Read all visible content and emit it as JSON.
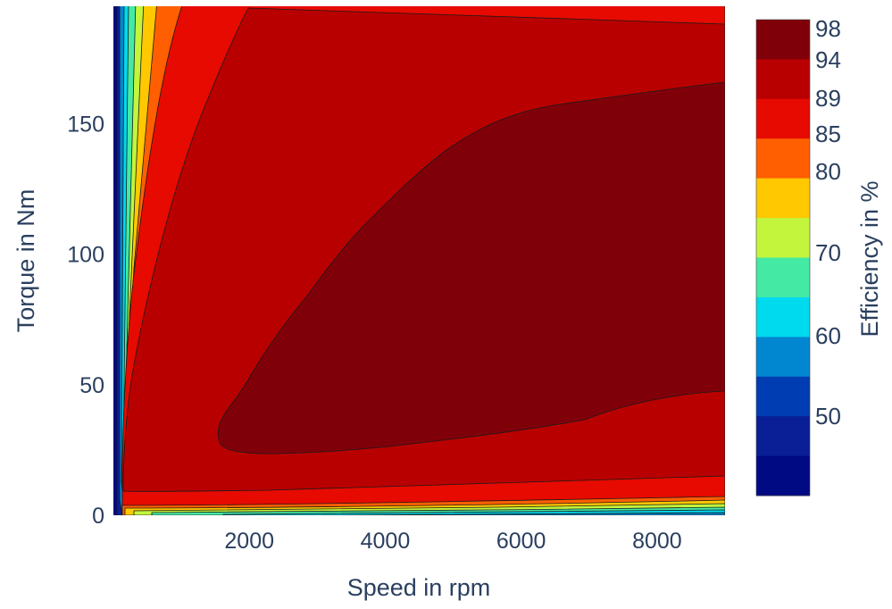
{
  "chart_data": {
    "type": "contour",
    "title": "",
    "xlabel": "Speed in rpm",
    "ylabel": "Torque in Nm",
    "xlim": [
      0,
      9000
    ],
    "ylim": [
      0,
      195
    ],
    "x_ticks": [
      2000,
      4000,
      6000,
      8000
    ],
    "y_ticks": [
      0,
      50,
      100,
      150
    ],
    "grid": true,
    "colorbar": {
      "title": "Efficiency in %",
      "tick_labels": [
        98,
        94,
        89,
        85,
        80,
        70,
        60,
        50
      ],
      "levels": [
        {
          "color": "#80000a"
        },
        {
          "color": "#b90000"
        },
        {
          "color": "#e60a00"
        },
        {
          "color": "#ff5f00"
        },
        {
          "color": "#ffc800"
        },
        {
          "color": "#c2f53c"
        },
        {
          "color": "#44eaa4"
        },
        {
          "color": "#00daee"
        },
        {
          "color": "#0087cf"
        },
        {
          "color": "#003cb2"
        },
        {
          "color": "#0a1e96"
        },
        {
          "color": "#000a82"
        }
      ]
    },
    "regions": [
      {
        "level": "> 94",
        "color": "#80000a",
        "outline_torque": [
          [
            1500,
            22
          ],
          [
            1500,
            30
          ],
          [
            2500,
            50
          ],
          [
            3500,
            75
          ],
          [
            5000,
            115
          ],
          [
            7000,
            158
          ],
          [
            9000,
            168
          ],
          [
            9000,
            46
          ],
          [
            7000,
            35
          ],
          [
            5000,
            28
          ],
          [
            3000,
            23
          ],
          [
            1500,
            22
          ]
        ]
      },
      {
        "level": "89 - 94",
        "color": "#b90000",
        "outline_torque": [
          [
            90,
            20
          ],
          [
            400,
            60
          ],
          [
            900,
            120
          ],
          [
            1250,
            195
          ],
          [
            9000,
            190
          ],
          [
            9000,
            13
          ],
          [
            3000,
            10
          ],
          [
            300,
            8
          ]
        ]
      },
      {
        "level": "85 - 89",
        "color": "#e60a00"
      },
      {
        "level": "80 - 85",
        "color": "#ff5f00"
      }
    ]
  }
}
